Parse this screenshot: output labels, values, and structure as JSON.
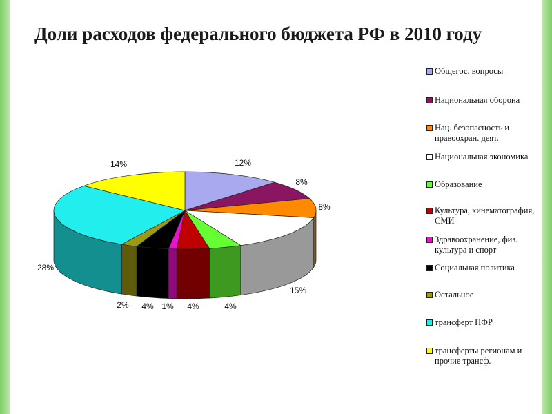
{
  "chart_data": {
    "type": "pie",
    "title": "Доли расходов федерального бюджета РФ в 2010 году",
    "legend_position": "right",
    "slices": [
      {
        "name": "Общегос. вопросы",
        "value": 12,
        "label": "12%",
        "color": "#a9a9f0"
      },
      {
        "name": "Национальная оборона",
        "value": 8,
        "label": "8%",
        "color": "#8a1560"
      },
      {
        "name": "Нац. безопасность и правоохран. деят.",
        "value": 8,
        "label": "8%",
        "color": "#ff8a00"
      },
      {
        "name": "Национальная экономика",
        "value": 15,
        "label": "15%",
        "color": "#ffffff"
      },
      {
        "name": "Образование",
        "value": 4,
        "label": "4%",
        "color": "#66ff33"
      },
      {
        "name": "Культура, кинематография, СМИ",
        "value": 4,
        "label": "4%",
        "color": "#c00000"
      },
      {
        "name": "Здравоохранение, физ. культура и спорт",
        "value": 1,
        "label": "1%",
        "color": "#ee11cc"
      },
      {
        "name": "Социальная политика",
        "value": 4,
        "label": "4%",
        "color": "#000000"
      },
      {
        "name": "Остальное",
        "value": 2,
        "label": "2%",
        "color": "#9c9a12"
      },
      {
        "name": "трансферт ПФР",
        "value": 28,
        "label": "28%",
        "color": "#22eeee"
      },
      {
        "name": "трансферты регионам и прочие трансф.",
        "value": 14,
        "label": "14%",
        "color": "#ffff00"
      }
    ]
  }
}
